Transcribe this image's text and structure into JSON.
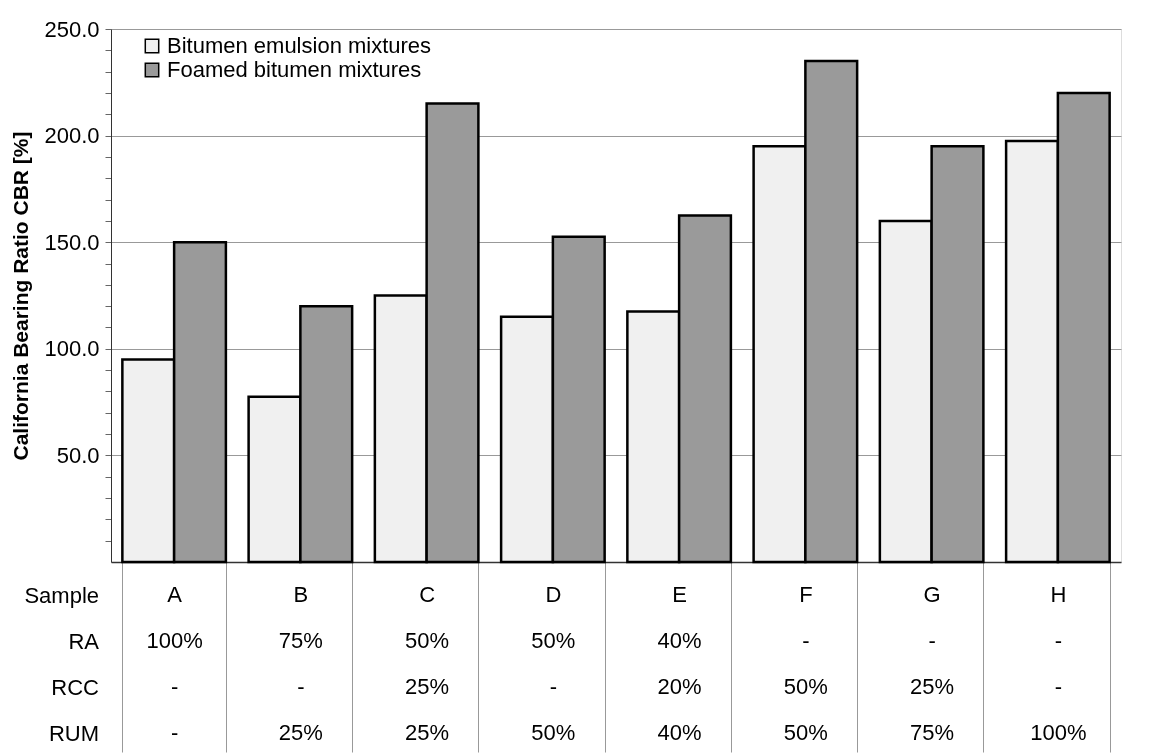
{
  "chart_data": {
    "type": "bar",
    "ylabel": "California Bearing Ratio CBR [%]",
    "categories": [
      "A\n100%\n-\n-",
      "B\n75%\n-\n25%",
      "C\n50%\n25%\n25%",
      "D\n50%\n-\n50%",
      "E\n40%\n20%\n40%",
      "F\n-\n50%\n50%",
      "G\n-\n25%\n75%",
      "H\n-\n-\n100%"
    ],
    "series": [
      {
        "name": "Bitumen emulsion mixtures",
        "color": "#f0f0f0",
        "values": [
          95,
          77.5,
          125,
          115,
          117.5,
          195,
          160,
          197.5
        ]
      },
      {
        "name": "Foamed bitumen mixtures",
        "color": "#9a9a9a",
        "values": [
          150,
          120,
          215,
          152.5,
          162.5,
          235,
          195,
          220
        ]
      }
    ],
    "ylim": [
      0,
      250
    ],
    "yticks": [
      {
        "value": 10,
        "label": null
      },
      {
        "value": 20,
        "label": null
      },
      {
        "value": 30,
        "label": null
      },
      {
        "value": 40,
        "label": null
      },
      {
        "value": 50,
        "label": "50.0"
      },
      {
        "value": 60,
        "label": null
      },
      {
        "value": 70,
        "label": null
      },
      {
        "value": 80,
        "label": null
      },
      {
        "value": 90,
        "label": null
      },
      {
        "value": 100,
        "label": "100.0"
      },
      {
        "value": 110,
        "label": null
      },
      {
        "value": 120,
        "label": null
      },
      {
        "value": 130,
        "label": null
      },
      {
        "value": 140,
        "label": null
      },
      {
        "value": 150,
        "label": "150.0"
      },
      {
        "value": 160,
        "label": null
      },
      {
        "value": 170,
        "label": null
      },
      {
        "value": 180,
        "label": null
      },
      {
        "value": 190,
        "label": null
      },
      {
        "value": 200,
        "label": "200.0"
      },
      {
        "value": 210,
        "label": null
      },
      {
        "value": 220,
        "label": null
      },
      {
        "value": 230,
        "label": null
      },
      {
        "value": 240,
        "label": null
      },
      {
        "value": 250,
        "label": "250.0"
      }
    ],
    "grid": "y",
    "legend": "top left",
    "annotations": [
      "Sample",
      "RA",
      "RCC",
      "RUM"
    ]
  }
}
